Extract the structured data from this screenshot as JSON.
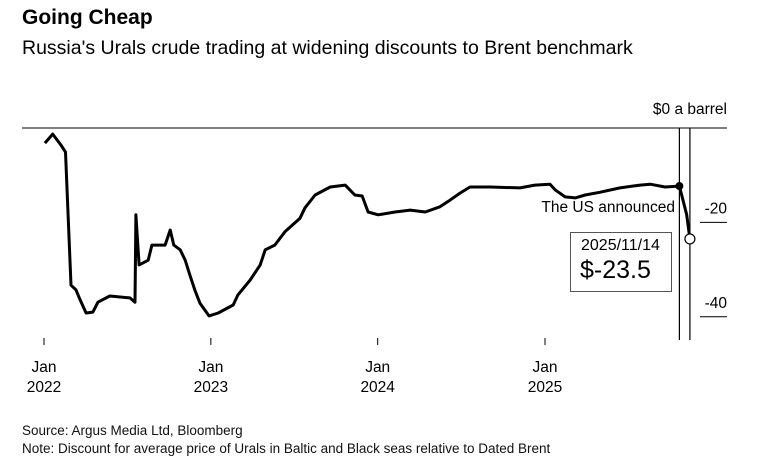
{
  "header": {
    "title": "Going Cheap",
    "subtitle": "Russia's Urals crude trading at widening discounts to Brent benchmark"
  },
  "footer": {
    "source": "Source: Argus Media Ltd, Bloomberg",
    "note": "Note: Discount for average price of Urals in Baltic and Black seas relative to Dated Brent"
  },
  "chart_data": {
    "type": "line",
    "title": "Going Cheap",
    "ylabel": "$0 a barrel",
    "ylim": [
      -45,
      0
    ],
    "y_ticks": [
      {
        "value": 0,
        "label": "$0 a barrel"
      },
      {
        "value": -20,
        "label": "-20"
      },
      {
        "value": -40,
        "label": "-40"
      }
    ],
    "x_ticks": [
      {
        "date": "2022-01-01",
        "month": "Jan",
        "year": "2022"
      },
      {
        "date": "2023-01-01",
        "month": "Jan",
        "year": "2023"
      },
      {
        "date": "2024-01-01",
        "month": "Jan",
        "year": "2024"
      },
      {
        "date": "2025-01-01",
        "month": "Jan",
        "year": "2025"
      }
    ],
    "grid": false,
    "line_color": "#000000",
    "annotation": {
      "date": "2025-10-22",
      "text": "The US announced"
    },
    "tooltip": {
      "date": "2025-11-14",
      "label": "2025/11/14",
      "value_label": "$-23.5",
      "value": -23.5
    },
    "series": [
      {
        "points": [
          [
            "2022-01-03",
            -3.2
          ],
          [
            "2022-01-20",
            -1.3
          ],
          [
            "2022-02-07",
            -3.6
          ],
          [
            "2022-02-17",
            -5.1
          ],
          [
            "2022-03-01",
            -33.3
          ],
          [
            "2022-03-12",
            -34.3
          ],
          [
            "2022-03-21",
            -36.4
          ],
          [
            "2022-04-03",
            -39.2
          ],
          [
            "2022-04-18",
            -39.0
          ],
          [
            "2022-04-29",
            -36.9
          ],
          [
            "2022-05-25",
            -35.6
          ],
          [
            "2022-07-08",
            -36.0
          ],
          [
            "2022-07-19",
            -36.9
          ],
          [
            "2022-07-21",
            -18.4
          ],
          [
            "2022-07-28",
            -29.0
          ],
          [
            "2022-08-17",
            -28.0
          ],
          [
            "2022-08-25",
            -24.8
          ],
          [
            "2022-09-23",
            -24.8
          ],
          [
            "2022-10-04",
            -21.6
          ],
          [
            "2022-10-12",
            -24.8
          ],
          [
            "2022-10-26",
            -25.8
          ],
          [
            "2022-11-06",
            -28.0
          ],
          [
            "2022-11-16",
            -31.1
          ],
          [
            "2022-11-27",
            -34.3
          ],
          [
            "2022-12-08",
            -37.1
          ],
          [
            "2022-12-28",
            -39.8
          ],
          [
            "2023-01-17",
            -39.2
          ],
          [
            "2023-02-19",
            -37.5
          ],
          [
            "2023-03-01",
            -35.4
          ],
          [
            "2023-03-28",
            -32.2
          ],
          [
            "2023-04-19",
            -29.0
          ],
          [
            "2023-04-30",
            -25.8
          ],
          [
            "2023-05-21",
            -24.8
          ],
          [
            "2023-06-12",
            -22.0
          ],
          [
            "2023-07-15",
            -19.1
          ],
          [
            "2023-07-26",
            -16.9
          ],
          [
            "2023-08-17",
            -14.2
          ],
          [
            "2023-09-19",
            -12.5
          ],
          [
            "2023-10-22",
            -12.1
          ],
          [
            "2023-11-12",
            -14.2
          ],
          [
            "2023-11-28",
            -14.4
          ],
          [
            "2023-12-11",
            -17.8
          ],
          [
            "2024-01-02",
            -18.4
          ],
          [
            "2024-02-08",
            -17.8
          ],
          [
            "2024-03-12",
            -17.4
          ],
          [
            "2024-04-14",
            -17.8
          ],
          [
            "2024-05-16",
            -16.7
          ],
          [
            "2024-06-07",
            -15.3
          ],
          [
            "2024-06-29",
            -13.8
          ],
          [
            "2024-07-21",
            -12.5
          ],
          [
            "2024-09-03",
            -12.5
          ],
          [
            "2024-11-07",
            -12.7
          ],
          [
            "2024-12-10",
            -12.1
          ],
          [
            "2025-01-12",
            -11.9
          ],
          [
            "2025-01-23",
            -13.1
          ],
          [
            "2025-02-14",
            -14.6
          ],
          [
            "2025-03-08",
            -14.8
          ],
          [
            "2025-03-30",
            -14.2
          ],
          [
            "2025-05-02",
            -13.6
          ],
          [
            "2025-06-14",
            -12.7
          ],
          [
            "2025-07-28",
            -12.1
          ],
          [
            "2025-08-19",
            -11.9
          ],
          [
            "2025-09-21",
            -12.5
          ],
          [
            "2025-10-22",
            -12.3
          ],
          [
            "2025-11-07",
            -18.4
          ],
          [
            "2025-11-14",
            -23.5
          ]
        ]
      }
    ]
  }
}
